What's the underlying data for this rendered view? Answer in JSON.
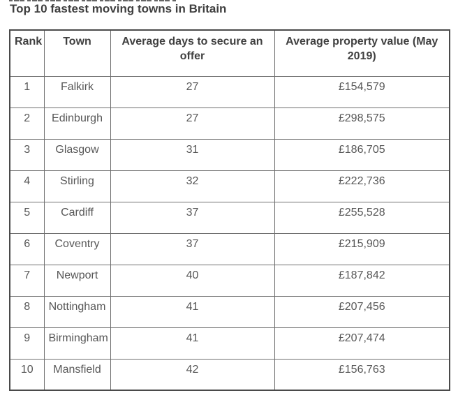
{
  "page": {
    "heading": "Top 10 fastest moving towns in Britain"
  },
  "chart_data": {
    "type": "table",
    "title": "Top 10 fastest moving towns in Britain",
    "columns": [
      "Rank",
      "Town",
      "Average days to secure an offer",
      "Average property value (May 2019)"
    ],
    "rows": [
      [
        "1",
        "Falkirk",
        "27",
        "£154,579"
      ],
      [
        "2",
        "Edinburgh",
        "27",
        "£298,575"
      ],
      [
        "3",
        "Glasgow",
        "31",
        "£186,705"
      ],
      [
        "4",
        "Stirling",
        "32",
        "£222,736"
      ],
      [
        "5",
        "Cardiff",
        "37",
        "£255,528"
      ],
      [
        "6",
        "Coventry",
        "37",
        "£215,909"
      ],
      [
        "7",
        "Newport",
        "40",
        "£187,842"
      ],
      [
        "8",
        "Nottingham",
        "41",
        "£207,456"
      ],
      [
        "9",
        "Birmingham",
        "41",
        "£207,474"
      ],
      [
        "10",
        "Mansfield",
        "42",
        "£156,763"
      ]
    ]
  },
  "colors": {
    "title_text": "#3f3f3f",
    "header_text": "#404040",
    "cell_text": "#575757",
    "border_outer": "#4a4a4a",
    "border_inner": "#6f6f6f",
    "background": "#ffffff"
  }
}
